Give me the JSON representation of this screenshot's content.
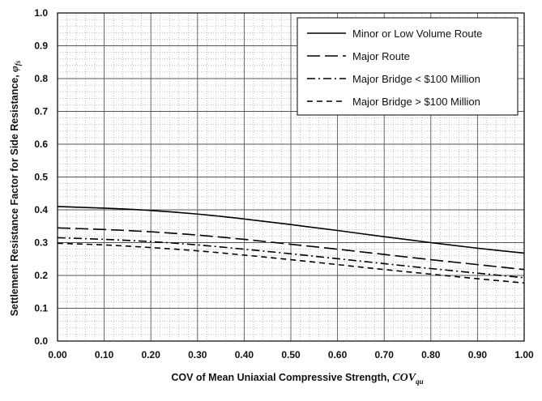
{
  "chart_data": {
    "type": "line",
    "title": "",
    "xlabel": {
      "main": "COV of Mean Uniaxial Compressive Strength, ",
      "symbol": "COV",
      "subscript": "qu"
    },
    "ylabel": {
      "main": "Settlement Resistance Factor for Side Resistance, ",
      "symbol": "φ",
      "subscript": "fs"
    },
    "xlim": [
      0,
      1
    ],
    "ylim": [
      0,
      1
    ],
    "x_ticks": [
      "0.00",
      "0.10",
      "0.20",
      "0.30",
      "0.40",
      "0.50",
      "0.60",
      "0.70",
      "0.80",
      "0.90",
      "1.00"
    ],
    "y_ticks": [
      "0.0",
      "0.1",
      "0.2",
      "0.3",
      "0.4",
      "0.5",
      "0.6",
      "0.7",
      "0.8",
      "0.9",
      "1.0"
    ],
    "grid": "major solid, minor dotted",
    "legend_position": "top-right",
    "series": [
      {
        "name": "Minor or Low Volume Route",
        "line_style": "solid",
        "x": [
          0,
          0.1,
          0.2,
          0.3,
          0.4,
          0.5,
          0.6,
          0.7,
          0.8,
          0.9,
          1.0
        ],
        "y": [
          0.41,
          0.405,
          0.398,
          0.387,
          0.372,
          0.355,
          0.337,
          0.318,
          0.3,
          0.283,
          0.268
        ]
      },
      {
        "name": "Major Route",
        "line_style": "long-dash",
        "x": [
          0,
          0.1,
          0.2,
          0.3,
          0.4,
          0.5,
          0.6,
          0.7,
          0.8,
          0.9,
          1.0
        ],
        "y": [
          0.345,
          0.34,
          0.333,
          0.323,
          0.31,
          0.295,
          0.28,
          0.264,
          0.248,
          0.233,
          0.218
        ]
      },
      {
        "name": "Major Bridge < $100 Million",
        "line_style": "dash-dot",
        "x": [
          0,
          0.1,
          0.2,
          0.3,
          0.4,
          0.5,
          0.6,
          0.7,
          0.8,
          0.9,
          1.0
        ],
        "y": [
          0.315,
          0.31,
          0.303,
          0.293,
          0.28,
          0.266,
          0.251,
          0.236,
          0.221,
          0.207,
          0.193
        ]
      },
      {
        "name": "Major Bridge > $100 Million",
        "line_style": "short-dash",
        "x": [
          0,
          0.1,
          0.2,
          0.3,
          0.4,
          0.5,
          0.6,
          0.7,
          0.8,
          0.9,
          1.0
        ],
        "y": [
          0.298,
          0.293,
          0.285,
          0.275,
          0.262,
          0.248,
          0.233,
          0.218,
          0.204,
          0.19,
          0.177
        ]
      }
    ]
  }
}
